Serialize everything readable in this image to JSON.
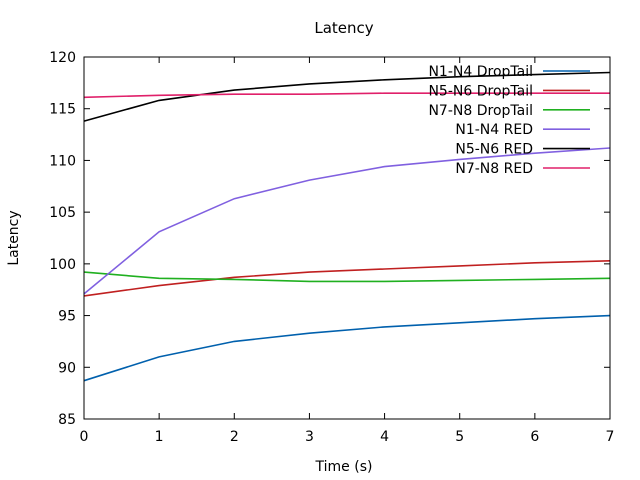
{
  "chart_data": {
    "type": "line",
    "title": "Latency",
    "xlabel": "Time (s)",
    "ylabel": "Latency",
    "xlim": [
      0,
      7
    ],
    "ylim": [
      85,
      120
    ],
    "xticks": [
      0,
      1,
      2,
      3,
      4,
      5,
      6,
      7
    ],
    "yticks": [
      85,
      90,
      95,
      100,
      105,
      110,
      115,
      120
    ],
    "grid": false,
    "legend_position": "top-right",
    "x": [
      0,
      1,
      2,
      3,
      4,
      5,
      6,
      7
    ],
    "series": [
      {
        "name": "N1-N4 DropTail",
        "color": "#0060ad",
        "values": [
          88.7,
          91.0,
          92.5,
          93.3,
          93.9,
          94.3,
          94.7,
          95.0
        ]
      },
      {
        "name": "N5-N6 DropTail",
        "color": "#c02020",
        "values": [
          96.9,
          97.9,
          98.7,
          99.2,
          99.5,
          99.8,
          100.1,
          100.3
        ]
      },
      {
        "name": "N7-N8 DropTail",
        "color": "#20b020",
        "values": [
          99.2,
          98.6,
          98.5,
          98.3,
          98.3,
          98.4,
          98.5,
          98.6
        ]
      },
      {
        "name": "N1-N4 RED",
        "color": "#8060e0",
        "values": [
          97.1,
          103.1,
          106.3,
          108.1,
          109.4,
          110.1,
          110.7,
          111.2
        ]
      },
      {
        "name": "N5-N6 RED",
        "color": "#000000",
        "values": [
          113.8,
          115.8,
          116.8,
          117.4,
          117.8,
          118.1,
          118.3,
          118.5
        ]
      },
      {
        "name": "N7-N8 RED",
        "color": "#e0206a",
        "values": [
          116.1,
          116.3,
          116.4,
          116.4,
          116.5,
          116.5,
          116.5,
          116.5
        ]
      }
    ]
  }
}
